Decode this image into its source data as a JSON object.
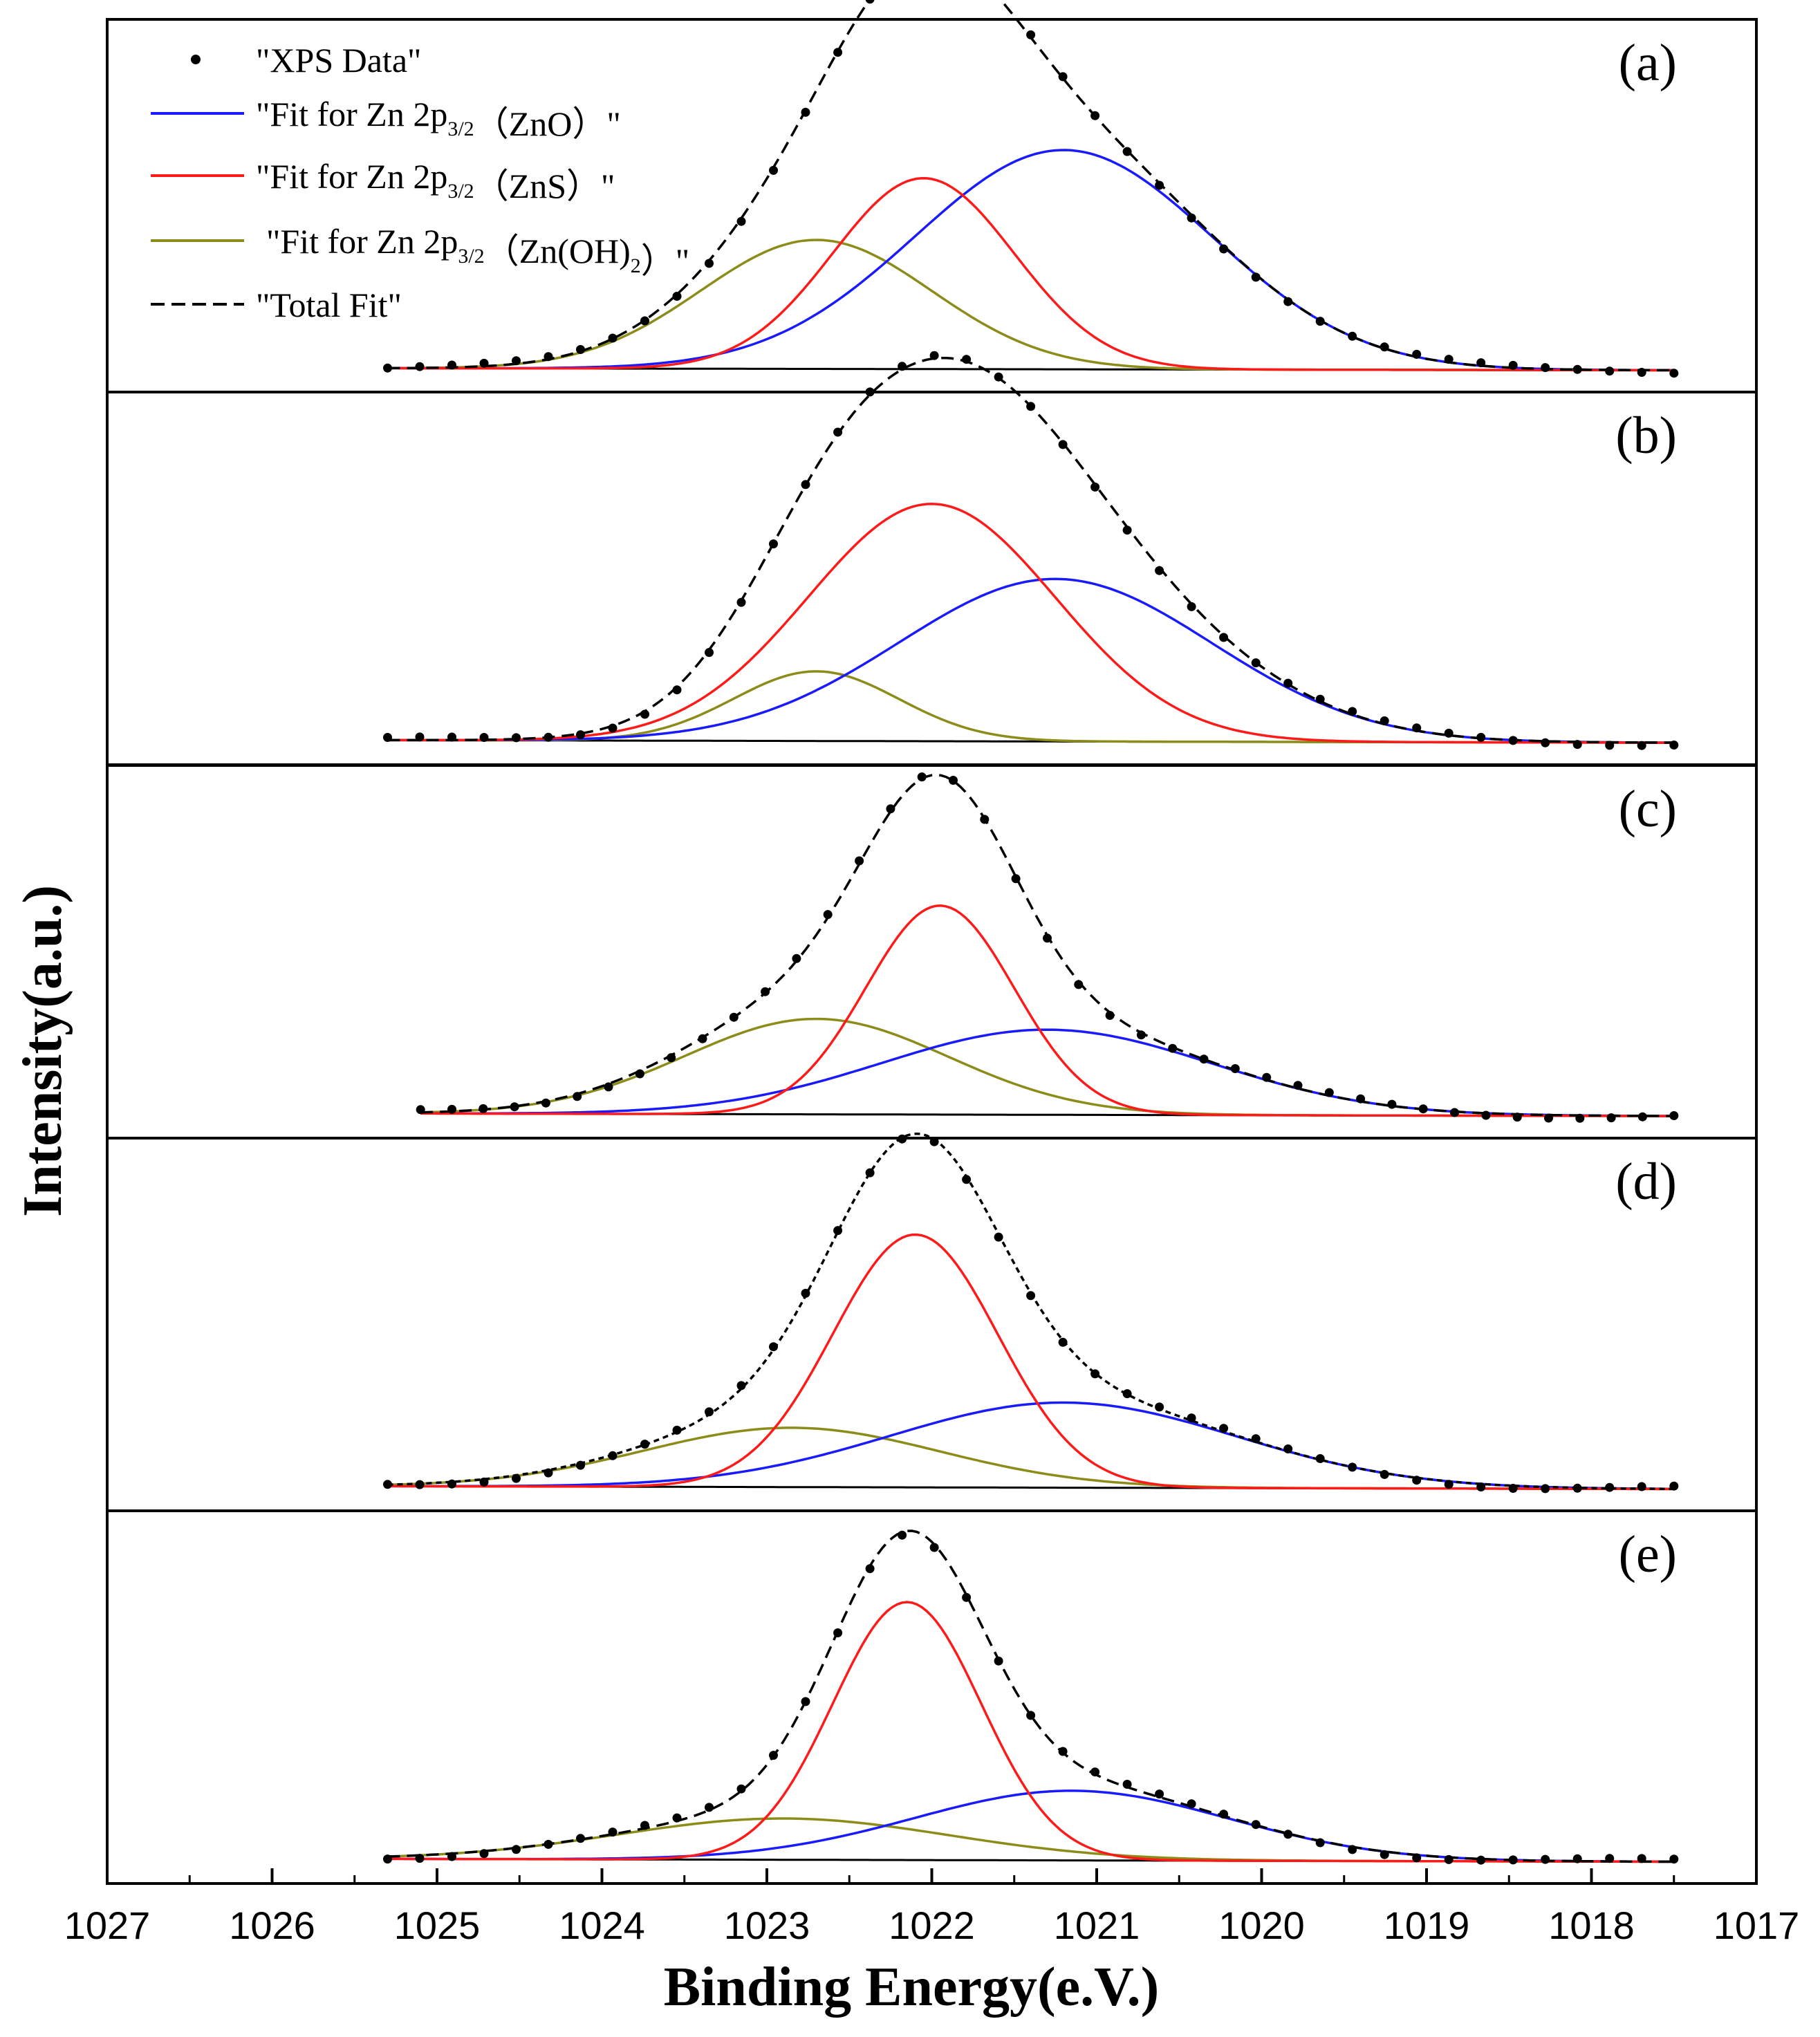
{
  "chart_data": {
    "type": "line",
    "xlabel": "Binding Energy(e.V.)",
    "ylabel": "Intensity(a.u.)",
    "xlim": [
      1027,
      1017
    ],
    "x_ticks": [
      "1027",
      "1026",
      "1025",
      "1024",
      "1023",
      "1022",
      "1021",
      "1020",
      "1019",
      "1018",
      "1017"
    ],
    "ylim": [
      0,
      1.15
    ],
    "legend": {
      "placement": "top-left",
      "entries": [
        {
          "key": "data",
          "label": "\"XPS Data\"",
          "color": "#000000",
          "style": "dots"
        },
        {
          "key": "zno",
          "label_prefix": "\"Fit for Zn 2p",
          "label_sub": "3/2",
          "label_suffix": "（ZnO）\"",
          "color": "#1a1aff",
          "style": "solid"
        },
        {
          "key": "zns",
          "label_prefix": "\"Fit for Zn 2p",
          "label_sub": "3/2",
          "label_suffix": "（ZnS）\"",
          "color": "#ff1a1a",
          "style": "solid"
        },
        {
          "key": "znoh",
          "label_prefix": "\"Fit for Zn 2p",
          "label_sub": "3/2",
          "label_suffix": "（Zn(OH)",
          "label_sub2": "2",
          "label_suffix2": "）\"",
          "color": "#8c8c1a",
          "style": "solid"
        },
        {
          "key": "total",
          "label": "\"Total Fit\"",
          "color": "#000000",
          "style": "dashed"
        }
      ]
    },
    "panels": [
      {
        "label": "(a)",
        "x_range": [
          1025.3,
          1017.5
        ],
        "background": [
          0.012,
          0.004
        ],
        "peaks": {
          "zno": {
            "center": 1021.2,
            "height": 0.85,
            "sigma": 0.9
          },
          "zns": {
            "center": 1022.05,
            "height": 0.74,
            "sigma": 0.55
          },
          "znoh": {
            "center": 1022.7,
            "height": 0.5,
            "sigma": 0.7
          }
        }
      },
      {
        "label": "(b)",
        "x_range": [
          1025.3,
          1017.5
        ],
        "background": [
          0.015,
          0.005
        ],
        "peaks": {
          "zno": {
            "center": 1021.25,
            "height": 0.63,
            "sigma": 0.95
          },
          "zns": {
            "center": 1022.0,
            "height": 0.92,
            "sigma": 0.75
          },
          "znoh": {
            "center": 1022.7,
            "height": 0.27,
            "sigma": 0.5
          }
        }
      },
      {
        "label": "(c)",
        "x_range": [
          1025.1,
          1017.5
        ],
        "background": [
          0.015,
          0.005
        ],
        "peaks": {
          "zno": {
            "center": 1021.3,
            "height": 0.33,
            "sigma": 1.0
          },
          "zns": {
            "center": 1021.95,
            "height": 0.81,
            "sigma": 0.45
          },
          "znoh": {
            "center": 1022.7,
            "height": 0.37,
            "sigma": 0.8
          }
        }
      },
      {
        "label": "(d)",
        "x_range": [
          1025.3,
          1017.5
        ],
        "background": [
          0.015,
          0.004
        ],
        "peaks": {
          "zno": {
            "center": 1021.2,
            "height": 0.33,
            "sigma": 1.05
          },
          "zns": {
            "center": 1022.1,
            "height": 0.98,
            "sigma": 0.5
          },
          "znoh": {
            "center": 1022.85,
            "height": 0.23,
            "sigma": 0.9
          }
        }
      },
      {
        "label": "(e)",
        "x_range": [
          1025.3,
          1017.5
        ],
        "background": [
          0.015,
          0.004
        ],
        "peaks": {
          "zno": {
            "center": 1021.15,
            "height": 0.27,
            "sigma": 0.95
          },
          "zns": {
            "center": 1022.15,
            "height": 1.0,
            "sigma": 0.45
          },
          "znoh": {
            "center": 1022.9,
            "height": 0.16,
            "sigma": 1.0
          }
        }
      }
    ]
  }
}
